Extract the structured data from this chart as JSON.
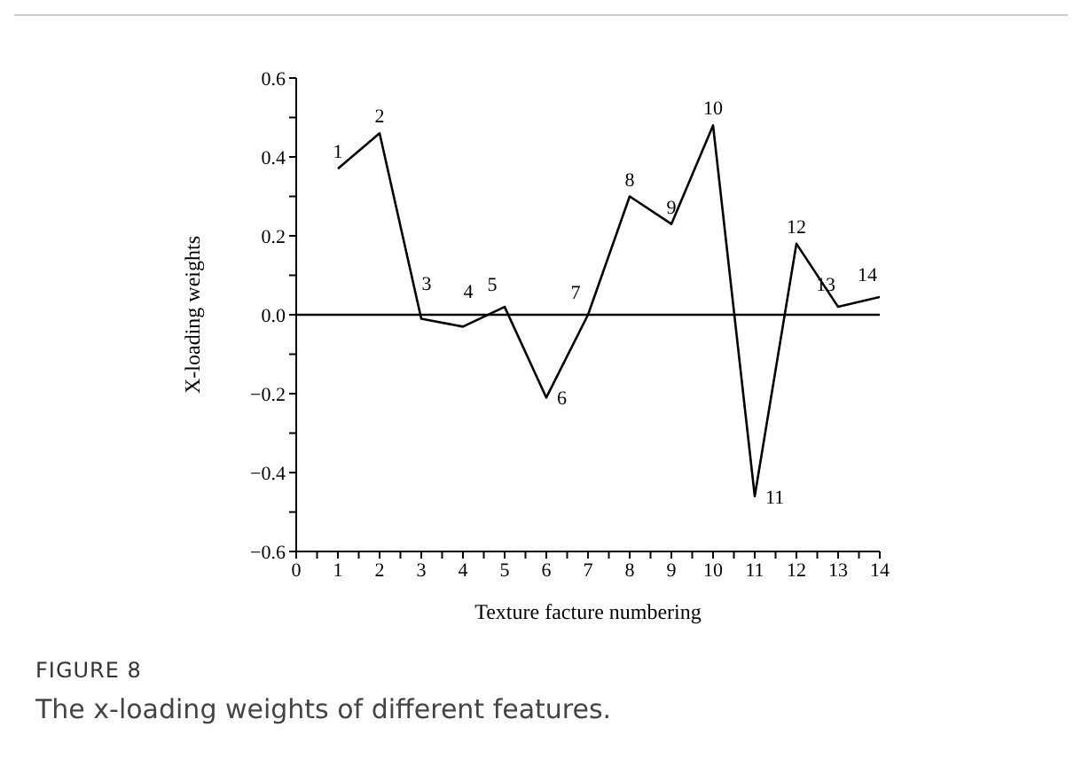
{
  "chart_data": {
    "type": "line",
    "title": "FIGURE 8",
    "subtitle": "The x-loading weights of different features.",
    "xlabel": "Texture facture numbering",
    "ylabel": "X-loading weights",
    "x": [
      1,
      2,
      3,
      4,
      5,
      6,
      7,
      8,
      9,
      10,
      11,
      12,
      13,
      14
    ],
    "series": [
      {
        "color": "#000000",
        "values": [
          0.37,
          0.46,
          -0.01,
          -0.03,
          0.02,
          -0.21,
          0.0,
          0.3,
          0.23,
          0.48,
          -0.46,
          0.18,
          0.02,
          0.045
        ]
      }
    ],
    "xlim": [
      0,
      14
    ],
    "xticks": [
      0,
      {
        "value": 0.5,
        "label": null
      },
      1,
      {
        "value": 1.5,
        "label": null
      },
      2,
      {
        "value": 2.5,
        "label": null
      },
      3,
      {
        "value": 3.5,
        "label": null
      },
      4,
      {
        "value": 4.5,
        "label": null
      },
      5,
      {
        "value": 5.5,
        "label": null
      },
      6,
      {
        "value": 6.5,
        "label": null
      },
      7,
      {
        "value": 7.5,
        "label": null
      },
      8,
      {
        "value": 8.5,
        "label": null
      },
      9,
      {
        "value": 9.5,
        "label": null
      },
      10,
      {
        "value": 10.5,
        "label": null
      },
      11,
      {
        "value": 11.5,
        "label": null
      },
      12,
      {
        "value": 12.5,
        "label": null
      },
      13,
      {
        "value": 13.5,
        "label": null
      },
      14
    ],
    "ylim": [
      -0.6,
      0.6
    ],
    "yticks": [
      {
        "value": -0.6,
        "label": "−0.6"
      },
      {
        "value": -0.5,
        "label": null
      },
      {
        "value": -0.4,
        "label": "−0.4"
      },
      {
        "value": -0.3,
        "label": null
      },
      {
        "value": -0.2,
        "label": "−0.2"
      },
      {
        "value": -0.1,
        "label": null
      },
      {
        "value": 0,
        "label": "0.0"
      },
      {
        "value": 0.1,
        "label": null
      },
      {
        "value": 0.2,
        "label": "0.2"
      },
      {
        "value": 0.3,
        "label": null
      },
      {
        "value": 0.4,
        "label": "0.4"
      },
      {
        "value": 0.5,
        "label": null
      },
      {
        "value": 0.6,
        "label": "0.6"
      }
    ],
    "ref_lines": [
      {
        "axis": "y",
        "value": 0,
        "color": "#000000"
      }
    ],
    "annotations": [
      {
        "text": "1",
        "x": 1,
        "y": 0.37
      },
      {
        "text": "2",
        "x": 2,
        "y": 0.46
      },
      {
        "text": "3",
        "x": 3,
        "y": -0.01
      },
      {
        "text": "4",
        "x": 4,
        "y": -0.03
      },
      {
        "text": "5",
        "x": 5,
        "y": 0.02
      },
      {
        "text": "6",
        "x": 6,
        "y": -0.21
      },
      {
        "text": "7",
        "x": 7,
        "y": 0.0
      },
      {
        "text": "8",
        "x": 8,
        "y": 0.3
      },
      {
        "text": "9",
        "x": 9,
        "y": 0.23
      },
      {
        "text": "10",
        "x": 10,
        "y": 0.48
      },
      {
        "text": "11",
        "x": 11,
        "y": -0.46
      },
      {
        "text": "12",
        "x": 12,
        "y": 0.18
      },
      {
        "text": "13",
        "x": 13,
        "y": 0.02
      },
      {
        "text": "14",
        "x": 14,
        "y": 0.045
      }
    ],
    "grid": false,
    "legend": false,
    "marker": "none",
    "line_style": "solid"
  }
}
